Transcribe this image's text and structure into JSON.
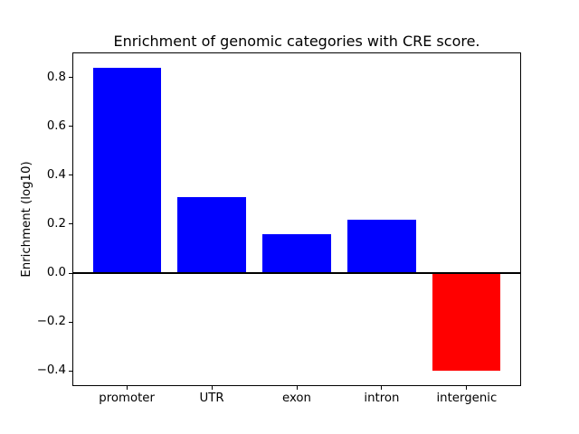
{
  "figure": {
    "background_color": "#ffffff",
    "text_color": "#000000"
  },
  "chart_data": {
    "type": "bar",
    "title": "Enrichment of genomic categories with CRE score.",
    "xlabel": "",
    "ylabel": "Enrichment (log10)",
    "categories": [
      "promoter",
      "UTR",
      "exon",
      "intron",
      "intergenic"
    ],
    "values": [
      0.84,
      0.31,
      0.16,
      0.22,
      -0.4
    ],
    "bar_colors": [
      "#0000ff",
      "#0000ff",
      "#0000ff",
      "#0000ff",
      "#ff0000"
    ],
    "positive_color": "#0000ff",
    "negative_color": "#ff0000",
    "bar_width": 0.8,
    "xlim": [
      -0.64,
      4.64
    ],
    "ylim": [
      -0.462,
      0.902
    ],
    "yticks": [
      0.8,
      0.6,
      0.4,
      0.2,
      0.0,
      -0.2,
      -0.4
    ],
    "ytick_labels": [
      "0.8",
      "0.6",
      "0.4",
      "0.2",
      "0.0",
      "−0.2",
      "−0.4"
    ],
    "grid": false,
    "zero_line": true,
    "zero_line_color": "#000000",
    "spine_color": "#000000",
    "legend": null
  }
}
